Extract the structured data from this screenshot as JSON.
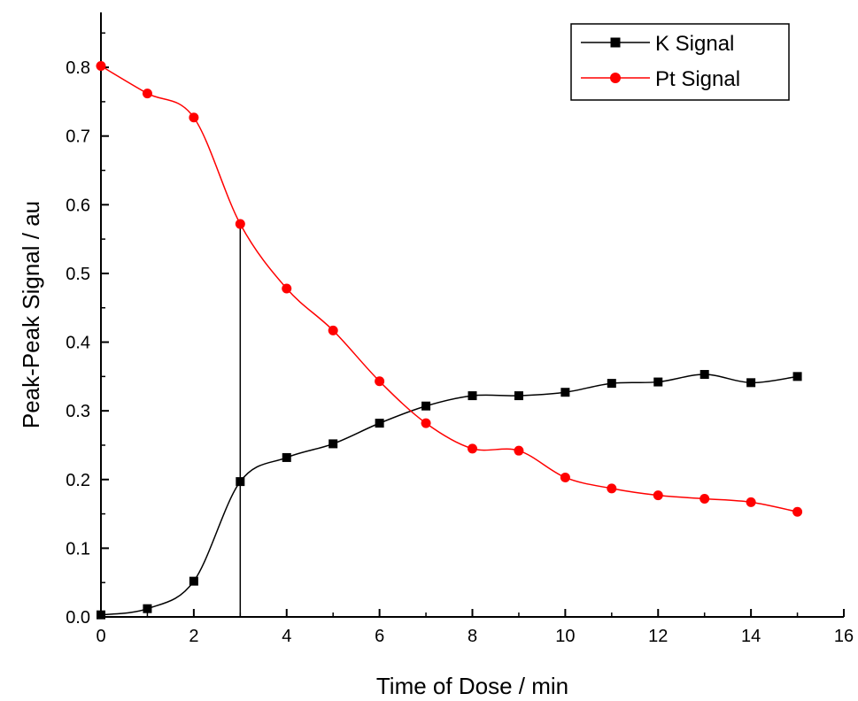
{
  "chart_data": {
    "type": "line",
    "title": "",
    "xlabel": "Time of Dose / min",
    "ylabel": "Peak-Peak Signal / au",
    "xlim": [
      0,
      16
    ],
    "ylim": [
      0,
      0.88
    ],
    "x_ticks": [
      "0",
      "2",
      "4",
      "6",
      "8",
      "10",
      "12",
      "14",
      "16"
    ],
    "y_ticks": [
      "0.0",
      "0.1",
      "0.2",
      "0.3",
      "0.4",
      "0.5",
      "0.6",
      "0.7",
      "0.8"
    ],
    "grid": false,
    "legend_position": "top-right",
    "series": [
      {
        "name": "K Signal",
        "marker": "square",
        "color": "#000000",
        "x": [
          0,
          1,
          2,
          3,
          4,
          5,
          6,
          7,
          8,
          9,
          10,
          11,
          12,
          13,
          14,
          15
        ],
        "y": [
          0.003,
          0.012,
          0.052,
          0.197,
          0.232,
          0.252,
          0.282,
          0.307,
          0.322,
          0.322,
          0.327,
          0.34,
          0.342,
          0.353,
          0.341,
          0.35
        ]
      },
      {
        "name": "Pt Signal",
        "marker": "circle",
        "color": "#ff0000",
        "x": [
          0,
          1,
          2,
          3,
          4,
          5,
          6,
          7,
          8,
          9,
          10,
          11,
          12,
          13,
          14,
          15
        ],
        "y": [
          0.802,
          0.762,
          0.727,
          0.572,
          0.478,
          0.417,
          0.343,
          0.282,
          0.245,
          0.242,
          0.203,
          0.187,
          0.177,
          0.172,
          0.167,
          0.153
        ]
      }
    ],
    "annotations": [
      {
        "type": "vertical-line",
        "x": 3,
        "y_from": 0,
        "y_to": 0.572
      }
    ]
  }
}
